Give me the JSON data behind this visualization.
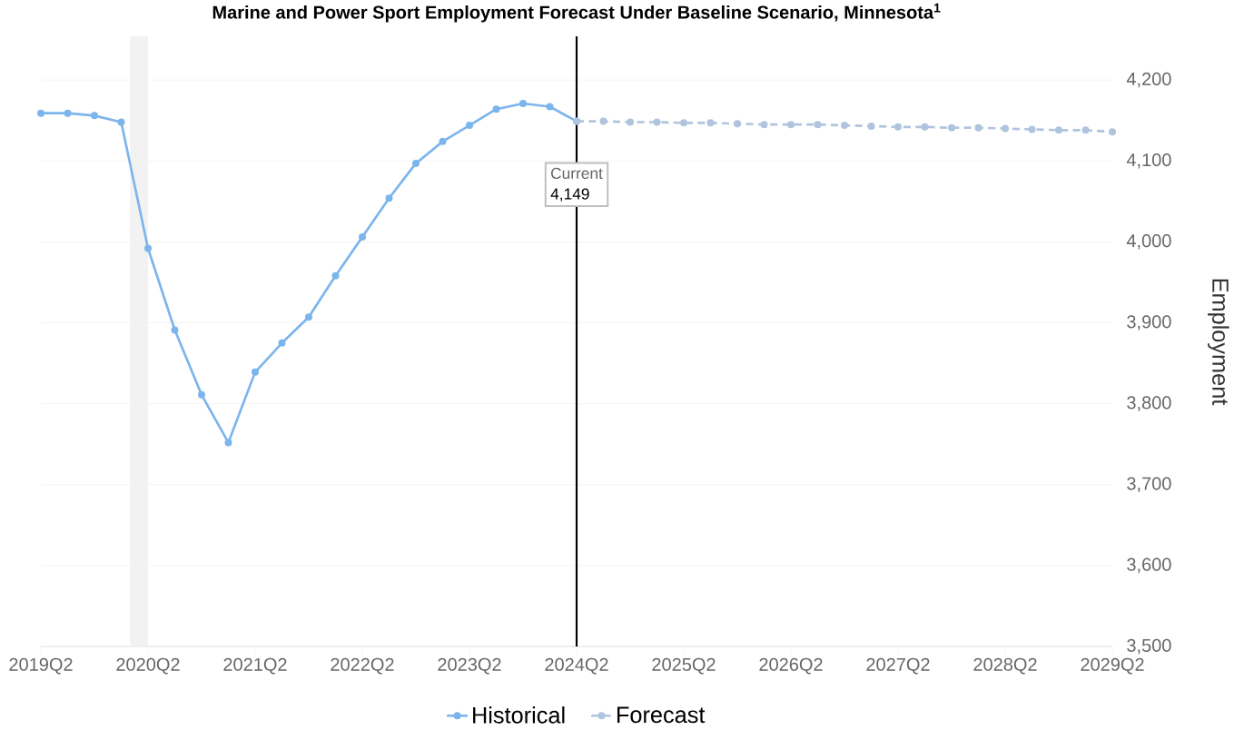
{
  "chart_data": {
    "type": "line",
    "title": "Marine and Power Sport Employment Forecast Under Baseline Scenario, Minnesota$^{1}$",
    "ylabel": "Employment",
    "xlim": [
      "2019-04",
      "2029-04"
    ],
    "ylim": [
      3500,
      4254
    ],
    "xticks": [
      {
        "value": "2019-04",
        "label": "2019Q2"
      },
      {
        "value": "2020-04",
        "label": "2020Q2"
      },
      {
        "value": "2021-04",
        "label": "2021Q2"
      },
      {
        "value": "2022-04",
        "label": "2022Q2"
      },
      {
        "value": "2023-04",
        "label": "2023Q2"
      },
      {
        "value": "2024-04",
        "label": "2024Q2"
      },
      {
        "value": "2025-04",
        "label": "2025Q2"
      },
      {
        "value": "2026-04",
        "label": "2026Q2"
      },
      {
        "value": "2027-04",
        "label": "2027Q2"
      },
      {
        "value": "2028-04",
        "label": "2028Q2"
      },
      {
        "value": "2029-04",
        "label": "2029Q2"
      }
    ],
    "yticks": [
      {
        "value": 3500,
        "label": "3,500"
      },
      {
        "value": 3600,
        "label": "3,600"
      },
      {
        "value": 3700,
        "label": "3,700"
      },
      {
        "value": 3800,
        "label": "3,800"
      },
      {
        "value": 3900,
        "label": "3,900"
      },
      {
        "value": 4000,
        "label": "4,000"
      },
      {
        "value": 4100,
        "label": "4,100"
      },
      {
        "value": 4200,
        "label": "4,200"
      }
    ],
    "grid": "y",
    "legend": "bottom",
    "marker": "circle",
    "series": [
      {
        "name": "Historical",
        "color": "#7cb5ec",
        "line_style": "solid",
        "x": [
          "2019-04",
          "2019-07",
          "2019-10",
          "2020-01",
          "2020-04",
          "2020-07",
          "2020-10",
          "2021-01",
          "2021-04",
          "2021-07",
          "2021-10",
          "2022-01",
          "2022-04",
          "2022-07",
          "2022-10",
          "2023-01",
          "2023-04",
          "2023-07",
          "2023-10",
          "2024-01",
          "2024-04"
        ],
        "values": [
          4159,
          4159,
          4156,
          4148,
          3992,
          3891,
          3811,
          3752,
          3839,
          3875,
          3907,
          3958,
          4006,
          4054,
          4097,
          4124,
          4144,
          4164,
          4171,
          4167,
          4149
        ]
      },
      {
        "name": "Forecast",
        "color": "#b0c4de",
        "line_style": "dashed",
        "x": [
          "2024-04",
          "2024-07",
          "2024-10",
          "2025-01",
          "2025-04",
          "2025-07",
          "2025-10",
          "2026-01",
          "2026-04",
          "2026-07",
          "2026-10",
          "2027-01",
          "2027-04",
          "2027-07",
          "2027-10",
          "2028-01",
          "2028-04",
          "2028-07",
          "2028-10",
          "2029-01",
          "2029-04"
        ],
        "values": [
          4149,
          4149,
          4148,
          4148,
          4147,
          4147,
          4146,
          4145,
          4145,
          4145,
          4144,
          4143,
          4142,
          4142,
          4141,
          4141,
          4140,
          4139,
          4138,
          4138,
          4136
        ]
      }
    ],
    "ref_lines": [
      {
        "axis": "x",
        "value": "2024-04",
        "color": "#000000"
      }
    ],
    "bands": [
      {
        "axis": "x",
        "from": "2020-02",
        "to": "2020-04",
        "color": "#f2f2f2"
      }
    ],
    "annotations": [
      "Current",
      "4,149"
    ]
  }
}
